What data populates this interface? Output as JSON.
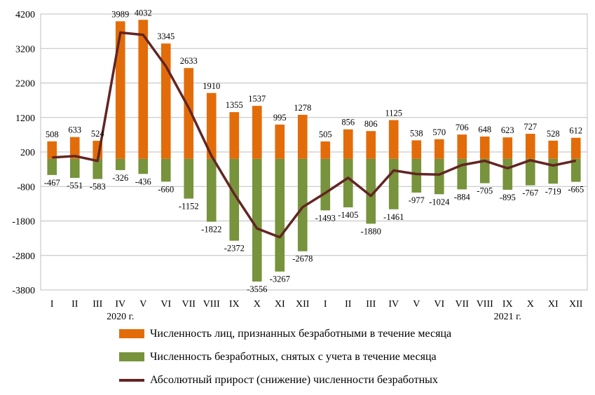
{
  "colors": {
    "recognized": "#E36C0A",
    "removed": "#77933C",
    "growth": "#632523",
    "grid": "#BFBFBF"
  },
  "chart_data": {
    "type": "bar+line",
    "categories": [
      "I",
      "II",
      "III",
      "IV",
      "V",
      "VI",
      "VII",
      "VIII",
      "IX",
      "X",
      "XI",
      "XII",
      "I",
      "II",
      "III",
      "IV",
      "V",
      "VI",
      "VII",
      "VIII",
      "IX",
      "X",
      "XI",
      "XII"
    ],
    "year_labels": [
      {
        "text": "2020 г.",
        "index": 3
      },
      {
        "text": "2021 г.",
        "index": 20
      }
    ],
    "ylim": [
      -3800,
      4200
    ],
    "yticks": [
      4200,
      3200,
      2200,
      1200,
      200,
      -800,
      -1800,
      -2800,
      -3800
    ],
    "grid": true,
    "legend_position": "bottom",
    "series": [
      {
        "name": "Численность лиц,  признанных безработными в течение месяца",
        "kind": "bar",
        "values": [
          508,
          633,
          524,
          3989,
          4032,
          3345,
          2633,
          1910,
          1355,
          1537,
          995,
          1278,
          505,
          856,
          806,
          1125,
          538,
          570,
          706,
          648,
          623,
          727,
          528,
          612
        ]
      },
      {
        "name": "Численность безработных, снятых с учета в течение месяца",
        "kind": "bar",
        "values": [
          -467,
          -551,
          -583,
          -326,
          -436,
          -660,
          -1152,
          -1822,
          -2372,
          -3556,
          -3267,
          -2678,
          -1493,
          -1405,
          -1880,
          -1461,
          -977,
          -1024,
          -884,
          -705,
          -895,
          -767,
          -719,
          -665
        ]
      },
      {
        "name": "Абсолютный прирост (снижение) численности безработных",
        "kind": "line",
        "values": [
          41,
          82,
          -59,
          3663,
          3596,
          2685,
          1481,
          88,
          -1017,
          -2019,
          -2272,
          -1400,
          -988,
          -549,
          -1074,
          -336,
          -439,
          -454,
          -178,
          -57,
          -272,
          -40,
          -191,
          -53
        ]
      }
    ],
    "value_labels_positive": [
      "508",
      "633",
      "524",
      "3989",
      "4032",
      "3345",
      "2633",
      "1910",
      "1355",
      "1537",
      "995",
      "1278",
      "505",
      "856",
      "806",
      "1125",
      "538",
      "570",
      "706",
      "648",
      "623",
      "727",
      "528",
      "612"
    ],
    "value_labels_negative": [
      "-467",
      "-551",
      "-583",
      "-326",
      "-436",
      "-660",
      "-1152",
      "-1822",
      "-2372",
      "-3556",
      "-3267",
      "-2678",
      "-1493",
      "-1405",
      "-1880",
      "-1461",
      "-977",
      "-1024",
      "-884",
      "-705",
      "-895",
      "-767",
      "-719",
      "-665"
    ]
  }
}
